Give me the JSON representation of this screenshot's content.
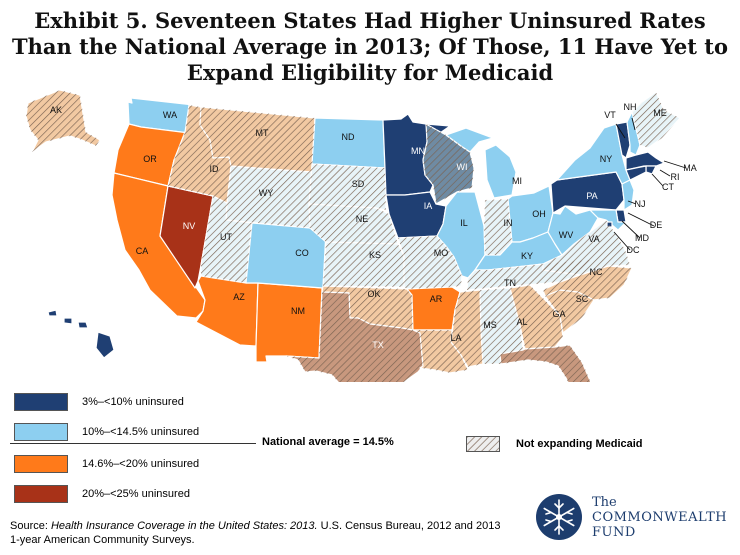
{
  "title": {
    "line1": "Exhibit 5. Seventeen States Had Higher Uninsured Rates",
    "line2": "Than the National Average in 2013; Of Those, 11 Have Yet to",
    "line3": "Expand Eligibility for Medicaid"
  },
  "colors": {
    "tier1": "#1f3f73",
    "tier2": "#8dcff0",
    "tier3": "#ff7a1a",
    "tier4": "#a83218",
    "notexp_light": "#e8f4f8",
    "notexp_blue": "#6f8ba3",
    "notexp_orange": "#f2c9a2",
    "notexp_red": "#c8987e",
    "hatch": "#8a6f5a"
  },
  "legend": {
    "tier1": "3%–<10% uninsured",
    "tier2": "10%–<14.5% uninsured",
    "tier3": "14.6%–<20% uninsured",
    "tier4": "20%–<25% uninsured",
    "national": "National average = 14.5%",
    "not_expanding": "Not expanding Medicaid"
  },
  "source": {
    "prefix": "Source: ",
    "title": "Health Insurance Coverage in the United States: 2013.",
    "rest": " U.S. Census Bureau, 2012 and 2013 1-year American Community Surveys."
  },
  "logo": {
    "the": "The",
    "commonwealth": "COMMONWEALTH",
    "fund": "FUND",
    "icon": "snowflake-icon"
  },
  "states": [
    {
      "abbr": "WA",
      "tier": 2,
      "not_expanding": false
    },
    {
      "abbr": "OR",
      "tier": 3,
      "not_expanding": false
    },
    {
      "abbr": "CA",
      "tier": 3,
      "not_expanding": false
    },
    {
      "abbr": "NV",
      "tier": 4,
      "not_expanding": false
    },
    {
      "abbr": "ID",
      "tier": 3,
      "not_expanding": true
    },
    {
      "abbr": "MT",
      "tier": 3,
      "not_expanding": true
    },
    {
      "abbr": "WY",
      "tier": 2,
      "not_expanding": true
    },
    {
      "abbr": "UT",
      "tier": 2,
      "not_expanding": true
    },
    {
      "abbr": "AZ",
      "tier": 3,
      "not_expanding": false
    },
    {
      "abbr": "NM",
      "tier": 3,
      "not_expanding": false
    },
    {
      "abbr": "CO",
      "tier": 2,
      "not_expanding": false
    },
    {
      "abbr": "ND",
      "tier": 2,
      "not_expanding": false
    },
    {
      "abbr": "SD",
      "tier": 2,
      "not_expanding": true
    },
    {
      "abbr": "NE",
      "tier": 2,
      "not_expanding": true
    },
    {
      "abbr": "KS",
      "tier": 2,
      "not_expanding": true
    },
    {
      "abbr": "OK",
      "tier": 3,
      "not_expanding": true
    },
    {
      "abbr": "TX",
      "tier": 4,
      "not_expanding": true
    },
    {
      "abbr": "MN",
      "tier": 1,
      "not_expanding": false
    },
    {
      "abbr": "IA",
      "tier": 1,
      "not_expanding": false
    },
    {
      "abbr": "MO",
      "tier": 2,
      "not_expanding": true
    },
    {
      "abbr": "AR",
      "tier": 3,
      "not_expanding": false
    },
    {
      "abbr": "LA",
      "tier": 3,
      "not_expanding": true
    },
    {
      "abbr": "WI",
      "tier": 1,
      "not_expanding": true
    },
    {
      "abbr": "IL",
      "tier": 2,
      "not_expanding": false
    },
    {
      "abbr": "MI",
      "tier": 2,
      "not_expanding": false
    },
    {
      "abbr": "IN",
      "tier": 2,
      "not_expanding": true
    },
    {
      "abbr": "OH",
      "tier": 2,
      "not_expanding": false
    },
    {
      "abbr": "KY",
      "tier": 2,
      "not_expanding": false
    },
    {
      "abbr": "TN",
      "tier": 2,
      "not_expanding": true
    },
    {
      "abbr": "MS",
      "tier": 3,
      "not_expanding": true
    },
    {
      "abbr": "AL",
      "tier": 2,
      "not_expanding": true
    },
    {
      "abbr": "GA",
      "tier": 3,
      "not_expanding": true
    },
    {
      "abbr": "FL",
      "tier": 4,
      "not_expanding": true
    },
    {
      "abbr": "SC",
      "tier": 3,
      "not_expanding": true
    },
    {
      "abbr": "NC",
      "tier": 3,
      "not_expanding": true
    },
    {
      "abbr": "VA",
      "tier": 2,
      "not_expanding": true
    },
    {
      "abbr": "WV",
      "tier": 2,
      "not_expanding": false
    },
    {
      "abbr": "PA",
      "tier": 1,
      "not_expanding": false
    },
    {
      "abbr": "NY",
      "tier": 2,
      "not_expanding": false
    },
    {
      "abbr": "VT",
      "tier": 1,
      "not_expanding": false
    },
    {
      "abbr": "NH",
      "tier": 2,
      "not_expanding": false
    },
    {
      "abbr": "ME",
      "tier": 2,
      "not_expanding": true
    },
    {
      "abbr": "MA",
      "tier": 1,
      "not_expanding": false
    },
    {
      "abbr": "RI",
      "tier": 1,
      "not_expanding": false
    },
    {
      "abbr": "CT",
      "tier": 1,
      "not_expanding": false
    },
    {
      "abbr": "NJ",
      "tier": 2,
      "not_expanding": false
    },
    {
      "abbr": "DE",
      "tier": 1,
      "not_expanding": false
    },
    {
      "abbr": "MD",
      "tier": 2,
      "not_expanding": false
    },
    {
      "abbr": "DC",
      "tier": 1,
      "not_expanding": false
    },
    {
      "abbr": "AK",
      "tier": 3,
      "not_expanding": true
    },
    {
      "abbr": "HI",
      "tier": 1,
      "not_expanding": false
    }
  ]
}
